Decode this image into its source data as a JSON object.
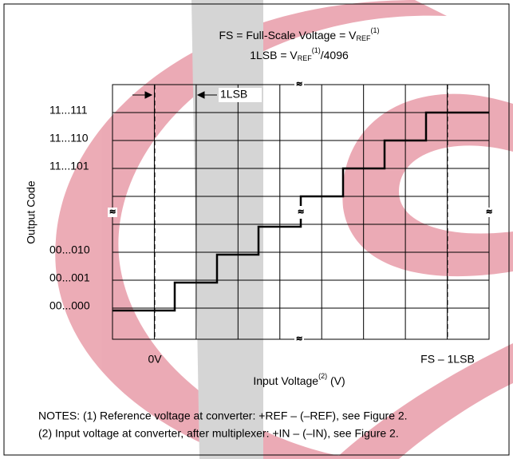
{
  "header": {
    "line1": {
      "text": "FS = Full-Scale Voltage = V",
      "sub": "REF",
      "sup": "(1)"
    },
    "line2": {
      "text": "1LSB = V",
      "sub": "REF",
      "sup": "(1)",
      "tail": "/4096"
    }
  },
  "annotations": {
    "lsb": "1LSB",
    "zero": "0V",
    "fs": "FS – 1LSB"
  },
  "axes": {
    "y_label": "Output Code",
    "x_label": {
      "text": "Input Voltage",
      "sup": "(2)",
      "tail": " (V)"
    }
  },
  "codes": [
    "11...111",
    "11...110",
    "11...101",
    "00...010",
    "00...001",
    "00...000"
  ],
  "notes": [
    "NOTES: (1) Reference voltage at converter: +REF – (–REF), see Figure 2.",
    "(2) Input voltage at converter, after multiplexer: +IN – (–IN), see Figure 2."
  ]
}
